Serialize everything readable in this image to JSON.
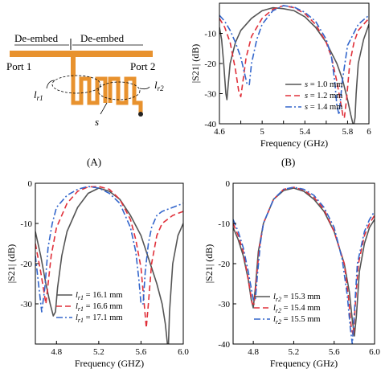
{
  "diagram": {
    "deembed_left": "De-embed",
    "deembed_right": "De-embed",
    "port1": "Port 1",
    "port2": "Port 2",
    "lr1": "l",
    "lr1_sub": "r1",
    "lr2": "l",
    "lr2_sub": "r2",
    "s": "s",
    "caption": "(A)",
    "color": "#e8922e"
  },
  "captions": {
    "b": "(B)"
  },
  "chart_data": [
    {
      "id": "b",
      "type": "line",
      "xlabel": "Frequency (GHz)",
      "ylabel": "|S21| (dB)",
      "xlim": [
        4.6,
        6.0
      ],
      "ylim": [
        -40,
        0
      ],
      "xticks": [
        4.6,
        4.8,
        5,
        5.2,
        5.4,
        5.6,
        5.8,
        6
      ],
      "xticklabels": [
        "4.6",
        "",
        "5",
        "",
        "5.4",
        "",
        "5.8",
        "6"
      ],
      "yticks": [
        -10,
        -20,
        -30,
        -40
      ],
      "yticklabels": [
        "-10",
        "-20",
        "-30",
        "-40"
      ],
      "legend": "bottom-right",
      "series": [
        {
          "label": "s = 1.0 mm",
          "color": "#555555",
          "dash": "",
          "x": [
            4.6,
            4.62,
            4.64,
            4.66,
            4.67,
            4.68,
            4.7,
            4.75,
            4.8,
            4.9,
            5.0,
            5.1,
            5.2,
            5.3,
            5.4,
            5.5,
            5.6,
            5.7,
            5.75,
            5.8,
            5.83,
            5.85,
            5.86,
            5.87,
            5.88,
            5.9,
            5.95,
            6.0
          ],
          "y": [
            -8,
            -12,
            -20,
            -30,
            -32,
            -28,
            -20,
            -13,
            -9,
            -5,
            -2.5,
            -1.5,
            -1.8,
            -2.5,
            -4.5,
            -8,
            -13,
            -20,
            -25,
            -32,
            -37,
            -40,
            -40,
            -38,
            -30,
            -20,
            -12,
            -7
          ]
        },
        {
          "label": "s = 1.2 mm",
          "color": "#e0303a",
          "dash": "7 4",
          "x": [
            4.6,
            4.65,
            4.7,
            4.75,
            4.78,
            4.8,
            4.82,
            4.85,
            4.9,
            5.0,
            5.1,
            5.2,
            5.3,
            5.4,
            5.5,
            5.6,
            5.65,
            5.7,
            5.74,
            5.76,
            5.77,
            5.79,
            5.82,
            5.86,
            5.9,
            6.0
          ],
          "y": [
            -5,
            -8,
            -13,
            -22,
            -29,
            -31,
            -26,
            -18,
            -11,
            -5,
            -2,
            -0.8,
            -1.5,
            -3.5,
            -7,
            -13,
            -18,
            -26,
            -34,
            -38,
            -38,
            -32,
            -20,
            -13,
            -9,
            -5
          ]
        },
        {
          "label": "s = 1.4 mm",
          "color": "#3366cc",
          "dash": "8 3 2 3",
          "x": [
            4.6,
            4.65,
            4.7,
            4.75,
            4.8,
            4.84,
            4.86,
            4.88,
            4.9,
            4.95,
            5.0,
            5.1,
            5.2,
            5.3,
            5.4,
            5.5,
            5.6,
            5.65,
            5.68,
            5.7,
            5.72,
            5.75,
            5.8,
            5.9,
            6.0
          ],
          "y": [
            -4,
            -6,
            -9,
            -13,
            -18,
            -24,
            -27,
            -27,
            -20,
            -12,
            -7,
            -2.5,
            -0.8,
            -1.3,
            -3,
            -6,
            -12,
            -18,
            -26,
            -34,
            -37,
            -26,
            -14,
            -7,
            -4
          ]
        }
      ]
    },
    {
      "id": "c",
      "type": "line",
      "xlabel": "Frequency (GHZ)",
      "ylabel": "|S21| (dB)",
      "xlim": [
        4.6,
        6.0
      ],
      "ylim": [
        -40,
        0
      ],
      "xticks": [
        4.8,
        5.2,
        5.6,
        6.0
      ],
      "xticklabels": [
        "4.8",
        "5.2",
        "5.6",
        "6.0"
      ],
      "yticks": [
        0,
        -10,
        -20,
        -30
      ],
      "yticklabels": [
        "0",
        "-10",
        "-20",
        "-30"
      ],
      "legend": "bottom-center",
      "series": [
        {
          "label": "lr1 = 16.1 mm",
          "color": "#555555",
          "dash": "",
          "x": [
            4.6,
            4.65,
            4.7,
            4.74,
            4.77,
            4.79,
            4.81,
            4.85,
            4.9,
            5.0,
            5.1,
            5.2,
            5.3,
            5.4,
            5.5,
            5.6,
            5.65,
            5.7,
            5.75,
            5.8,
            5.83,
            5.85,
            5.86,
            5.87,
            5.9,
            5.95,
            6.0
          ],
          "y": [
            -12,
            -18,
            -25,
            -30,
            -33,
            -32,
            -26,
            -18,
            -12,
            -6,
            -2.5,
            -1.2,
            -2,
            -4,
            -8,
            -13,
            -17,
            -21,
            -25,
            -30,
            -35,
            -40,
            -40,
            -32,
            -20,
            -13,
            -10
          ]
        },
        {
          "label": "lr1 = 16.6 mm",
          "color": "#e0303a",
          "dash": "7 4",
          "x": [
            4.6,
            4.65,
            4.7,
            4.75,
            4.8,
            4.9,
            5.0,
            5.1,
            5.2,
            5.3,
            5.4,
            5.5,
            5.55,
            5.6,
            5.63,
            5.65,
            5.67,
            5.7,
            5.75,
            5.8,
            5.9,
            6.0
          ],
          "y": [
            -15,
            -22,
            -30,
            -18,
            -11,
            -5,
            -2,
            -0.9,
            -0.8,
            -1.5,
            -4,
            -9,
            -14,
            -21,
            -30,
            -36,
            -30,
            -20,
            -13,
            -10,
            -8,
            -7
          ]
        },
        {
          "label": "lr1 = 17.1 mm",
          "color": "#3366cc",
          "dash": "8 3 2 3",
          "x": [
            4.6,
            4.63,
            4.66,
            4.69,
            4.72,
            4.76,
            4.8,
            4.9,
            5.0,
            5.1,
            5.2,
            5.3,
            5.4,
            5.5,
            5.55,
            5.58,
            5.6,
            5.62,
            5.64,
            5.67,
            5.7,
            5.75,
            5.8,
            5.9,
            6.0
          ],
          "y": [
            -18,
            -25,
            -32,
            -26,
            -16,
            -10,
            -6,
            -3,
            -1.5,
            -0.8,
            -1.2,
            -2.5,
            -5,
            -11,
            -17,
            -24,
            -30,
            -30,
            -22,
            -15,
            -11,
            -8,
            -7,
            -6,
            -5
          ]
        }
      ]
    },
    {
      "id": "d",
      "type": "line",
      "xlabel": "Frequency (GHz)",
      "ylabel": "|S21| (dB)",
      "xlim": [
        4.6,
        6.0
      ],
      "ylim": [
        -40,
        0
      ],
      "xticks": [
        4.8,
        5.2,
        5.6,
        6.0
      ],
      "xticklabels": [
        "4.8",
        "5.2",
        "5.6",
        "6.0"
      ],
      "yticks": [
        0,
        -10,
        -20,
        -30,
        -40
      ],
      "yticklabels": [
        "0",
        "-10",
        "-20",
        "-30",
        "-40"
      ],
      "legend": "bottom-center",
      "series": [
        {
          "label": "lr2 = 15.3 mm",
          "color": "#555555",
          "dash": "",
          "x": [
            4.6,
            4.65,
            4.7,
            4.75,
            4.78,
            4.8,
            4.82,
            4.85,
            4.9,
            5.0,
            5.1,
            5.2,
            5.3,
            5.4,
            5.5,
            5.6,
            5.7,
            5.75,
            5.78,
            5.8,
            5.82,
            5.85,
            5.9,
            5.95,
            6.0
          ],
          "y": [
            -11,
            -14,
            -18,
            -24,
            -29,
            -31,
            -26,
            -17,
            -10,
            -4,
            -1.8,
            -1.2,
            -2,
            -4,
            -7,
            -12,
            -20,
            -27,
            -34,
            -38,
            -33,
            -22,
            -15,
            -11,
            -9
          ]
        },
        {
          "label": "lr2 = 15.4 mm",
          "color": "#e0303a",
          "dash": "7 4",
          "x": [
            4.6,
            4.65,
            4.7,
            4.75,
            4.79,
            4.81,
            4.83,
            4.86,
            4.9,
            5.0,
            5.1,
            5.2,
            5.3,
            5.4,
            5.5,
            5.6,
            5.7,
            5.74,
            5.77,
            5.79,
            5.81,
            5.84,
            5.9,
            5.95,
            6.0
          ],
          "y": [
            -10,
            -13,
            -17,
            -24,
            -30,
            -30,
            -24,
            -16,
            -10,
            -4,
            -1.5,
            -1,
            -1.7,
            -3.5,
            -6.5,
            -12,
            -20,
            -28,
            -36,
            -38,
            -30,
            -20,
            -13,
            -10,
            -8
          ]
        },
        {
          "label": "lr2 = 15.5 mm",
          "color": "#3366cc",
          "dash": "8 3 2 3",
          "x": [
            4.6,
            4.65,
            4.7,
            4.75,
            4.8,
            4.82,
            4.84,
            4.87,
            4.9,
            5.0,
            5.1,
            5.2,
            5.3,
            5.4,
            5.5,
            5.6,
            5.68,
            5.73,
            5.76,
            5.78,
            5.8,
            5.83,
            5.9,
            5.95,
            6.0
          ],
          "y": [
            -9,
            -12,
            -16,
            -22,
            -29,
            -29,
            -23,
            -15,
            -10,
            -4,
            -1.5,
            -1,
            -1.5,
            -3,
            -6,
            -11,
            -19,
            -28,
            -36,
            -40,
            -32,
            -20,
            -12,
            -9,
            -7
          ]
        }
      ]
    }
  ]
}
